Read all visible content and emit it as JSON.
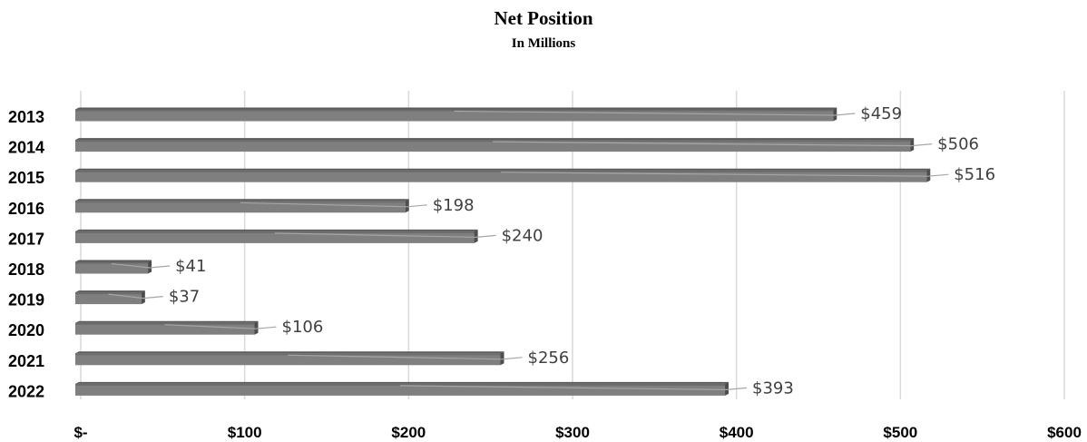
{
  "chart_data": {
    "type": "bar",
    "orientation": "horizontal",
    "title": "Net Position",
    "subtitle": "In Millions",
    "categories": [
      "2013",
      "2014",
      "2015",
      "2016",
      "2017",
      "2018",
      "2019",
      "2020",
      "2021",
      "2022"
    ],
    "values": [
      459,
      506,
      516,
      198,
      240,
      41,
      37,
      106,
      256,
      393
    ],
    "data_labels": [
      "$459",
      "$506",
      "$516",
      "$198",
      "$240",
      "$41",
      "$37",
      "$106",
      "$256",
      "$393"
    ],
    "x_ticks": [
      "$-",
      "$100",
      "$200",
      "$300",
      "$400",
      "$500",
      "$600"
    ],
    "xlim": [
      0,
      600
    ],
    "grid": true,
    "legend": "none",
    "colors": {
      "bar": "#7f7f7f",
      "bar_top": "#5a5a5a",
      "bar_side": "#4d4d4d",
      "grid": "#d9d9d9",
      "leader": "#a6a6a6",
      "label": "#404040"
    }
  }
}
